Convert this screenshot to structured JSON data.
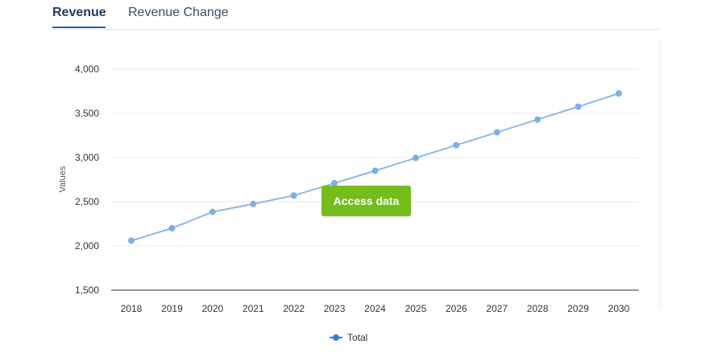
{
  "tabs": [
    {
      "label": "Revenue",
      "active": true
    },
    {
      "label": "Revenue Change",
      "active": false
    }
  ],
  "overlay_button": {
    "label": "Access data"
  },
  "legend": {
    "label": "Total",
    "color": "#2f7fd6"
  },
  "chart_data": {
    "type": "line",
    "title": "",
    "xlabel": "",
    "ylabel": "Values",
    "x": [
      "2018",
      "2019",
      "2020",
      "2021",
      "2022",
      "2023",
      "2024",
      "2025",
      "2026",
      "2027",
      "2028",
      "2029",
      "2030"
    ],
    "series": [
      {
        "name": "Total",
        "color": "#8fb8e6",
        "values": [
          2060,
          2200,
          2385,
          2475,
          2570,
          2710,
          2850,
          2995,
          3140,
          3285,
          3430,
          3575,
          3725
        ]
      }
    ],
    "ylim": [
      1500,
      4000
    ],
    "yticks": [
      1500,
      2000,
      2500,
      3000,
      3500,
      4000
    ],
    "ytick_labels": [
      "1,500",
      "2,000",
      "2,500",
      "3,000",
      "3,500",
      "4,000"
    ],
    "grid": true
  }
}
